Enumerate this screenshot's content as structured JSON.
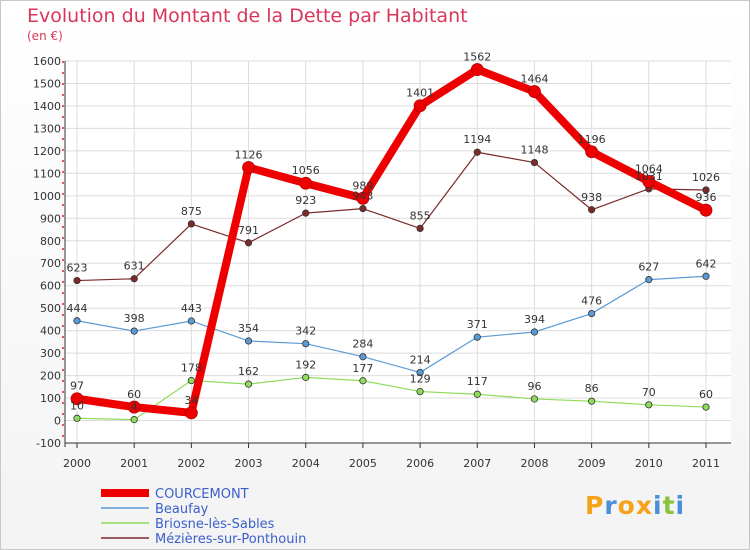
{
  "chart_data": {
    "type": "line",
    "title": "Evolution du Montant de la Dette par Habitant",
    "subtitle": "(en €)",
    "x": [
      "2000",
      "2001",
      "2002",
      "2003",
      "2004",
      "2005",
      "2006",
      "2007",
      "2008",
      "2009",
      "2010",
      "2011"
    ],
    "ylim": [
      -100,
      1600
    ],
    "yticks": [
      -100,
      0,
      100,
      200,
      300,
      400,
      500,
      600,
      700,
      800,
      900,
      1000,
      1100,
      1200,
      1300,
      1400,
      1500,
      1600
    ],
    "grid": true,
    "legend_position": "bottom-left",
    "series": [
      {
        "name": "COURCEMONT",
        "color": "#ee0000",
        "values": [
          97,
          60,
          34,
          1126,
          1056,
          989,
          1401,
          1562,
          1464,
          1196,
          1064,
          936
        ]
      },
      {
        "name": "Beaufay",
        "color": "#5b9bd5",
        "values": [
          444,
          398,
          443,
          354,
          342,
          284,
          214,
          371,
          394,
          476,
          627,
          642
        ]
      },
      {
        "name": "Briosne-lès-Sables",
        "color": "#8fdc5a",
        "values": [
          10,
          4,
          178,
          162,
          192,
          177,
          129,
          117,
          96,
          86,
          70,
          60
        ]
      },
      {
        "name": "Mézières-sur-Ponthouin",
        "color": "#7a2a2a",
        "values": [
          623,
          631,
          875,
          791,
          923,
          943,
          855,
          1194,
          1148,
          938,
          1031,
          1026
        ]
      }
    ]
  },
  "brand": {
    "letters": [
      "P",
      "r",
      "o",
      "x",
      "i",
      "t",
      "i"
    ],
    "colors": [
      "#f6a21a",
      "#4a90d9",
      "#f6a21a",
      "#f6a21a",
      "#4a90d9",
      "#8ac43f",
      "#4a90d9"
    ]
  }
}
